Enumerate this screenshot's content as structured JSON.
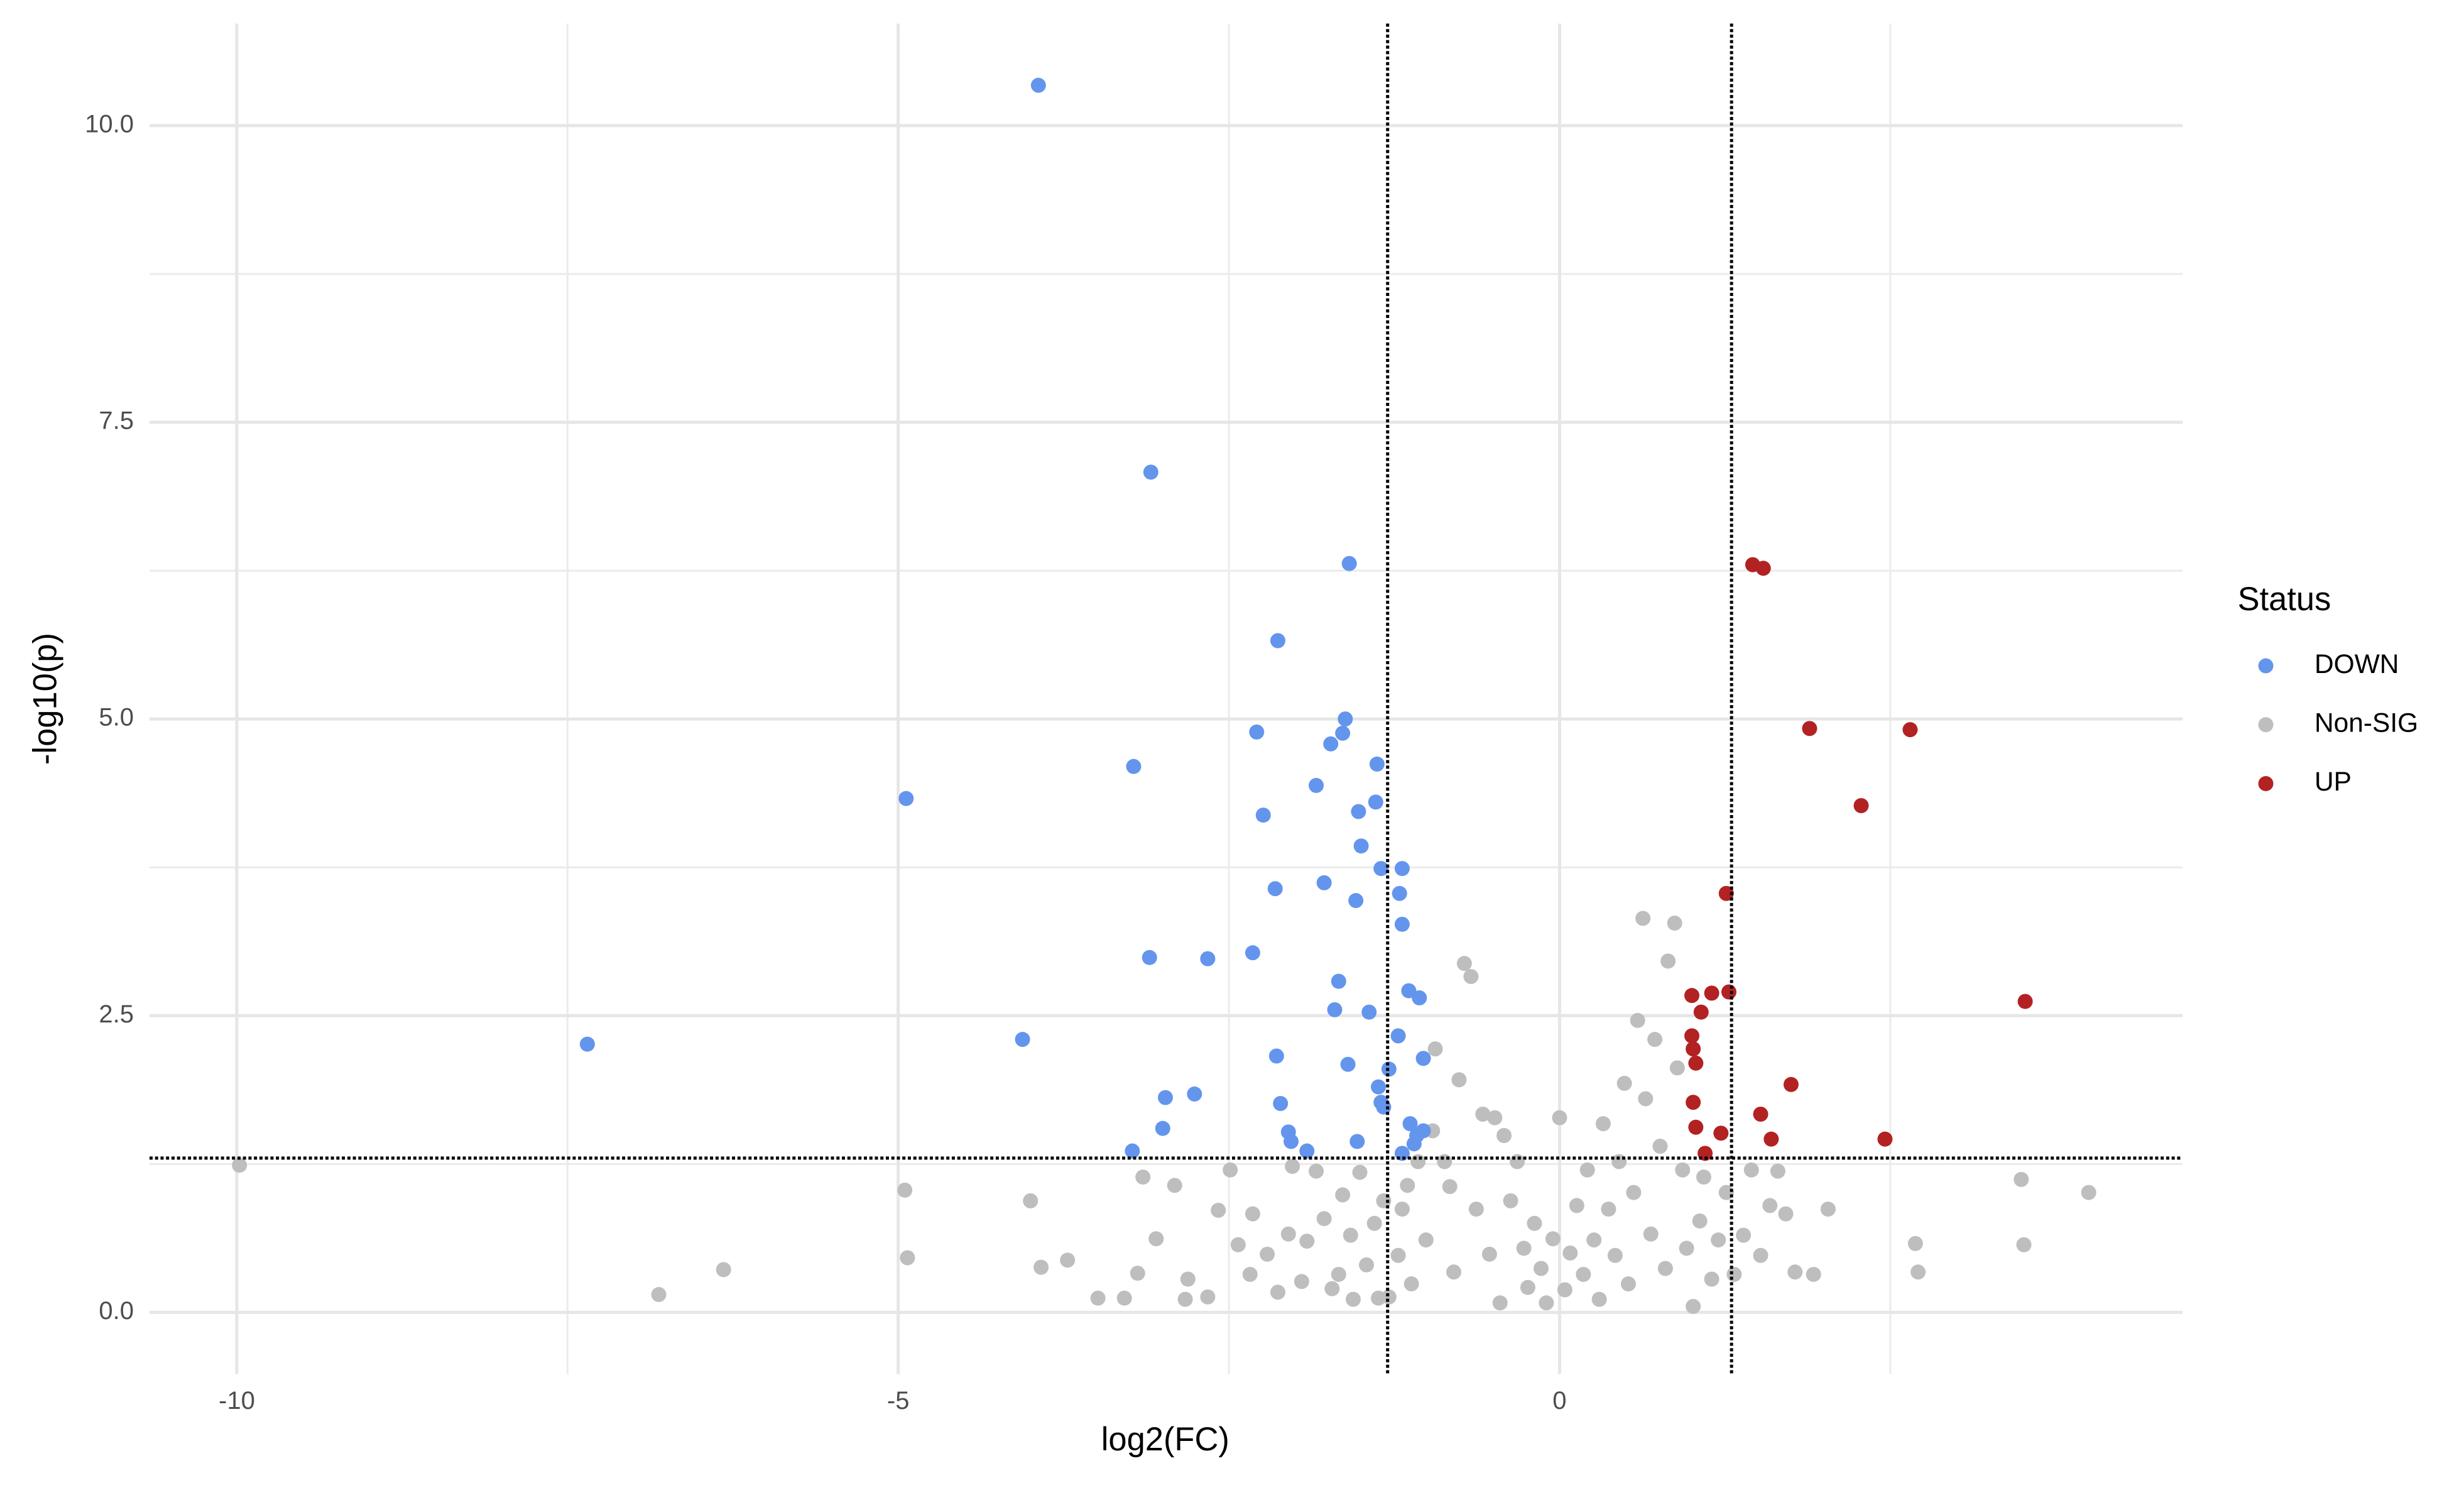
{
  "chart_data": {
    "type": "scatter",
    "x_label": "log2(FC)",
    "y_label": "-log10(p)",
    "legend_title": "Status",
    "legend": "right",
    "grid": true,
    "xlim": [
      -10.66,
      4.71
    ],
    "ylim": [
      -0.52,
      10.86
    ],
    "xticks": [
      -10,
      -5,
      0
    ],
    "yticks": [
      {
        "value": 0,
        "label": "0.0"
      },
      2.5,
      {
        "value": 5,
        "label": "5.0"
      },
      7.5,
      {
        "value": 10,
        "label": "10.0"
      }
    ],
    "xminor": [
      -7.5,
      -2.5,
      2.5
    ],
    "yminor": [
      1.25,
      3.75,
      6.25,
      8.75
    ],
    "thresholds": {
      "x": [
        -1.3,
        1.3
      ],
      "y": 1.3
    },
    "series": [
      {
        "name": "DOWN",
        "color": "#6495ed",
        "x": [
          -3.94,
          -3.09,
          -1.59,
          -2.13,
          -1.62,
          -1.64,
          -1.73,
          -2.29,
          -3.22,
          -4.94,
          -1.38,
          -1.84,
          -1.39,
          -1.52,
          -2.24,
          -1.5,
          -1.19,
          -1.35,
          -1.78,
          -2.15,
          -1.21,
          -1.54,
          -1.19,
          -3.1,
          -2.66,
          -2.32,
          -1.67,
          -1.14,
          -1.06,
          -1.7,
          -1.44,
          -1.22,
          -4.06,
          -7.35,
          -2.14,
          -1.03,
          -1.29,
          -1.6,
          -1.37,
          -2.76,
          -2.98,
          -1.35,
          -2.11,
          -1.33,
          -1.13,
          -3.0,
          -1.03,
          -2.05,
          -1.08,
          -2.03,
          -1.53,
          -1.1,
          -3.23,
          -1.91,
          -1.19
        ],
        "values": [
          10.34,
          7.08,
          6.31,
          5.66,
          5.0,
          4.88,
          4.79,
          4.89,
          4.6,
          4.33,
          4.62,
          4.44,
          4.3,
          4.22,
          4.19,
          3.93,
          3.74,
          3.74,
          3.62,
          3.57,
          3.53,
          3.47,
          3.27,
          2.99,
          2.98,
          3.03,
          2.79,
          2.71,
          2.65,
          2.55,
          2.53,
          2.33,
          2.3,
          2.26,
          2.16,
          2.14,
          2.05,
          2.09,
          1.9,
          1.84,
          1.81,
          1.77,
          1.76,
          1.73,
          1.59,
          1.55,
          1.53,
          1.52,
          1.49,
          1.44,
          1.44,
          1.42,
          1.36,
          1.36,
          1.34
        ]
      },
      {
        "name": "Non-SIG",
        "color": "#bebebe",
        "x": [
          -9.98,
          -6.81,
          -6.32,
          -4.95,
          -4.93,
          -4.0,
          -3.92,
          -3.72,
          -3.49,
          -3.29,
          -3.19,
          -3.15,
          -3.05,
          -2.91,
          -2.81,
          -2.83,
          -2.66,
          -2.58,
          -2.49,
          -2.43,
          -2.34,
          -2.32,
          -2.21,
          -2.13,
          -2.05,
          -2.02,
          -1.95,
          -1.91,
          -1.84,
          -1.78,
          -1.72,
          -1.67,
          -1.64,
          -1.58,
          -1.56,
          -1.51,
          -1.46,
          -1.4,
          -1.37,
          -1.33,
          -1.29,
          -1.22,
          -1.19,
          -1.15,
          -1.12,
          -1.07,
          -1.01,
          -0.96,
          -0.94,
          -0.87,
          -0.83,
          -0.8,
          -0.76,
          -0.72,
          -0.67,
          -0.63,
          -0.58,
          -0.53,
          -0.49,
          -0.45,
          -0.42,
          -0.37,
          -0.32,
          -0.27,
          -0.24,
          -0.19,
          -0.14,
          -0.1,
          -0.05,
          0.0,
          0.04,
          0.08,
          0.13,
          0.18,
          0.21,
          0.26,
          0.3,
          0.33,
          0.37,
          0.42,
          0.45,
          0.49,
          0.52,
          0.56,
          0.59,
          0.63,
          0.65,
          0.69,
          0.72,
          0.76,
          0.8,
          0.82,
          0.87,
          0.89,
          0.93,
          0.96,
          1.01,
          1.06,
          1.09,
          1.15,
          1.2,
          1.26,
          1.32,
          1.39,
          1.45,
          1.52,
          1.59,
          1.65,
          1.71,
          1.78,
          1.92,
          2.03,
          2.69,
          2.71,
          3.49,
          3.51,
          4.0
        ],
        "values": [
          1.24,
          0.15,
          0.36,
          1.03,
          0.46,
          0.94,
          0.38,
          0.44,
          0.12,
          0.12,
          0.33,
          1.14,
          0.62,
          1.07,
          0.28,
          0.11,
          0.13,
          0.86,
          1.2,
          0.57,
          0.32,
          0.83,
          0.49,
          0.17,
          0.66,
          1.23,
          0.26,
          0.6,
          1.19,
          0.79,
          0.2,
          0.32,
          0.99,
          0.65,
          0.11,
          1.18,
          0.4,
          0.75,
          0.12,
          0.94,
          0.13,
          0.48,
          0.87,
          1.07,
          0.24,
          1.27,
          0.61,
          1.53,
          2.22,
          1.27,
          1.06,
          0.34,
          1.96,
          2.94,
          2.83,
          0.87,
          1.67,
          0.49,
          1.64,
          0.08,
          1.49,
          0.94,
          1.27,
          0.54,
          0.21,
          0.75,
          0.37,
          0.08,
          0.62,
          1.64,
          0.19,
          0.5,
          0.9,
          0.32,
          1.2,
          0.61,
          0.11,
          1.59,
          0.87,
          0.48,
          1.27,
          1.93,
          0.24,
          1.01,
          2.46,
          3.32,
          1.8,
          0.66,
          2.3,
          1.4,
          0.37,
          2.96,
          3.28,
          2.06,
          1.2,
          0.54,
          0.05,
          0.77,
          1.14,
          0.28,
          0.61,
          1.01,
          0.32,
          0.65,
          1.2,
          0.48,
          0.9,
          1.19,
          0.83,
          0.34,
          0.32,
          0.87,
          0.58,
          0.34,
          1.12,
          0.57,
          1.01
        ]
      },
      {
        "name": "UP",
        "color": "#b22222",
        "x": [
          1.46,
          1.54,
          1.89,
          2.65,
          2.28,
          1.26,
          3.52,
          1.0,
          1.15,
          1.28,
          1.07,
          1.0,
          1.01,
          1.03,
          1.75,
          1.01,
          1.52,
          1.03,
          1.22,
          1.6,
          2.46,
          1.1
        ],
        "values": [
          6.3,
          6.27,
          4.92,
          4.91,
          4.27,
          3.53,
          2.62,
          2.67,
          2.69,
          2.7,
          2.53,
          2.33,
          2.22,
          2.1,
          1.92,
          1.77,
          1.67,
          1.56,
          1.51,
          1.46,
          1.46,
          1.34
        ]
      }
    ]
  }
}
